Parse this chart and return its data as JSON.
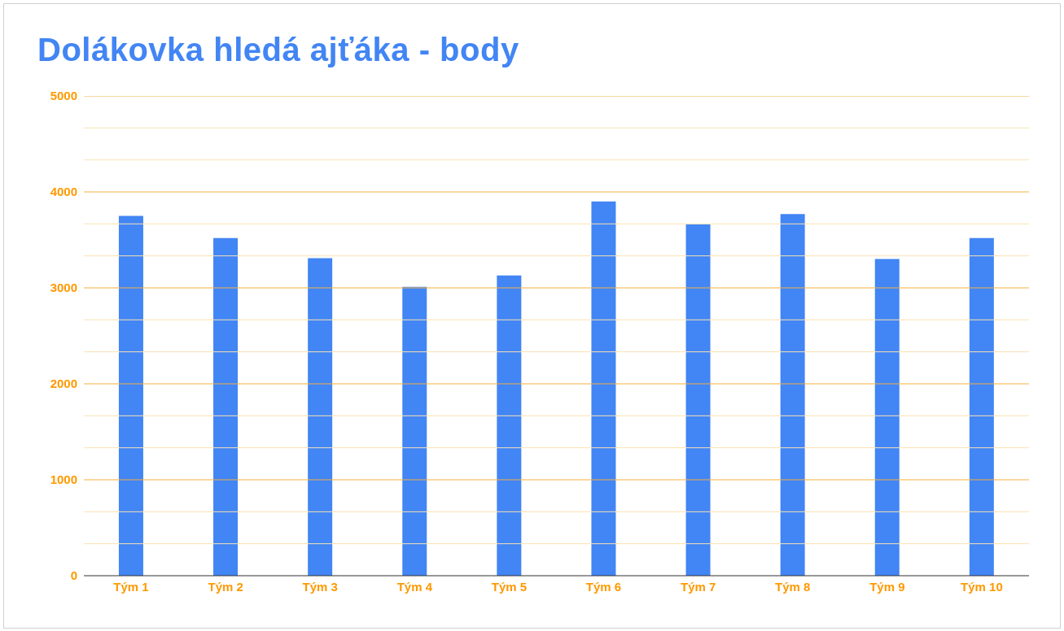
{
  "chart_data": {
    "type": "bar",
    "title": "Dolákovka hledá ajťáka - body",
    "categories": [
      "Tým 1",
      "Tým 2",
      "Tým 3",
      "Tým 4",
      "Tým 5",
      "Tým 6",
      "Tým 7",
      "Tým 8",
      "Tým 9",
      "Tým 10"
    ],
    "values": [
      3750,
      3520,
      3310,
      3010,
      3130,
      3900,
      3660,
      3770,
      3300,
      3520
    ],
    "color": "#4285f4",
    "ylim": [
      0,
      5000
    ],
    "yticks": [
      0,
      {
        "value": 333.3,
        "label": null
      },
      {
        "value": 666.7,
        "label": null
      },
      1000,
      {
        "value": 1333.3,
        "label": null
      },
      {
        "value": 1666.7,
        "label": null
      },
      2000,
      {
        "value": 2333.3,
        "label": null
      },
      {
        "value": 2666.7,
        "label": null
      },
      3000,
      {
        "value": 3333.3,
        "label": null
      },
      {
        "value": 3666.7,
        "label": null
      },
      4000,
      {
        "value": 4333.3,
        "label": null
      },
      {
        "value": 4666.7,
        "label": null
      },
      5000
    ],
    "grid": true,
    "legend": false
  }
}
